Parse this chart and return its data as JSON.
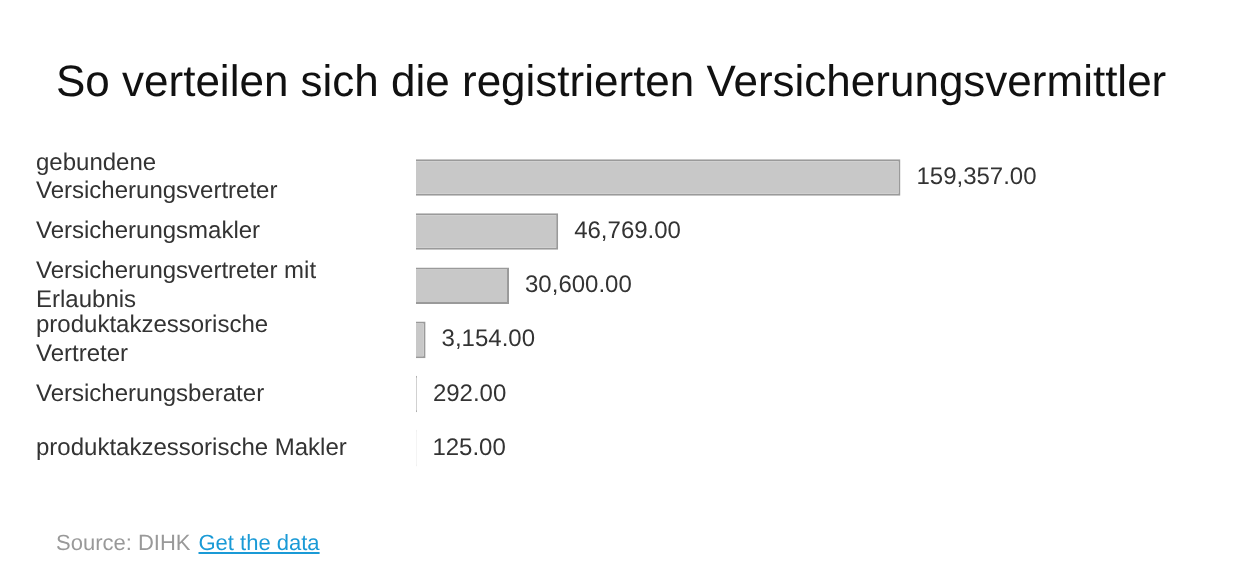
{
  "chart_data": {
    "type": "bar",
    "orientation": "horizontal",
    "title": "So verteilen sich die registrierten Versicherungsvermittler",
    "categories": [
      "gebundene Versicherungsvertreter",
      "Versicherungsmakler",
      "Versicherungsvertreter mit Erlaubnis",
      "produktakzessorische Vertreter",
      "Versicherungsberater",
      "produktakzessorische Makler"
    ],
    "values": [
      159357,
      46769,
      30600,
      3154,
      292,
      125
    ],
    "value_labels": [
      "159,357.00",
      "46,769.00",
      "30,600.00",
      "3,154.00",
      "292.00",
      "125.00"
    ],
    "color": "#c8c8c8",
    "legend": false,
    "annotations": [
      "Source: DIHK",
      "Get the data"
    ]
  }
}
